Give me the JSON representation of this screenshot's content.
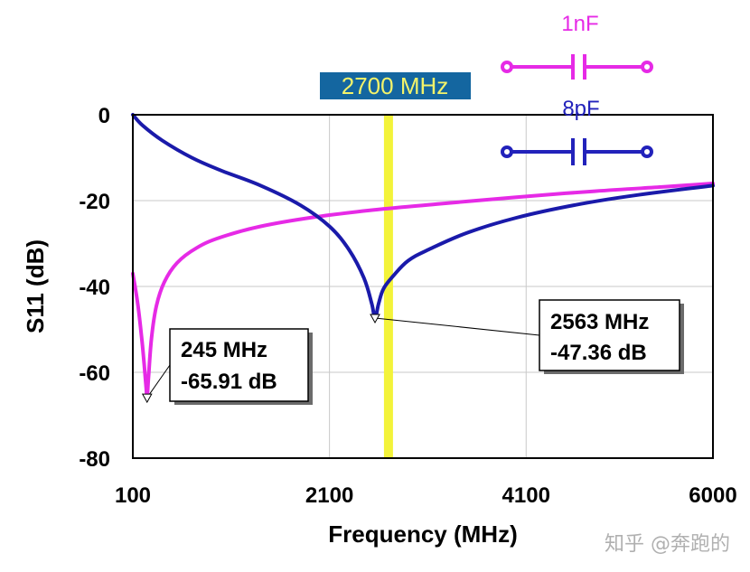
{
  "chart_data": {
    "type": "line",
    "title": "",
    "xlabel": "Frequency (MHz)",
    "ylabel": "S11 (dB)",
    "xlim": [
      100,
      6000
    ],
    "ylim": [
      -80,
      0
    ],
    "xticks": [
      100,
      2100,
      4100,
      6000
    ],
    "yticks": [
      0,
      -20,
      -40,
      -60,
      -80
    ],
    "grid": true,
    "series": [
      {
        "name": "1nF",
        "color": "#e62ae6",
        "x": [
          100,
          150,
          190,
          215,
          235,
          245,
          260,
          290,
          340,
          420,
          550,
          750,
          1000,
          1400,
          1900,
          2500,
          3200,
          4000,
          4800,
          5500,
          6000
        ],
        "y": [
          -37,
          -44,
          -52,
          -58,
          -63.5,
          -65.91,
          -61,
          -52,
          -44.5,
          -39,
          -34.5,
          -31,
          -28.5,
          -26,
          -24,
          -22.3,
          -20.8,
          -19.2,
          -17.8,
          -16.8,
          -16
        ]
      },
      {
        "name": "8pF",
        "color": "#1a1aaa",
        "x": [
          100,
          200,
          400,
          700,
          1000,
          1400,
          1800,
          2100,
          2300,
          2450,
          2530,
          2563,
          2600,
          2650,
          2750,
          2900,
          3100,
          3500,
          4000,
          4600,
          5200,
          6000
        ],
        "y": [
          0,
          -2.5,
          -6,
          -10,
          -13,
          -16.5,
          -21,
          -26,
          -31.5,
          -38,
          -44,
          -47.36,
          -44,
          -40.5,
          -37.5,
          -34,
          -31.5,
          -27.5,
          -24,
          -21,
          -18.8,
          -16.5
        ]
      }
    ],
    "markers": [
      {
        "series": "1nF",
        "x": 245,
        "y": -65.91,
        "freq_text": "245 MHz",
        "value_text": "-65.91 dB"
      },
      {
        "series": "8pF",
        "x": 2563,
        "y": -47.36,
        "freq_text": "2563 MHz",
        "value_text": "-47.36 dB"
      }
    ],
    "vline": {
      "x": 2700,
      "label": "2700 MHz",
      "color": "#f3f33a",
      "label_bg": "#1466a0"
    },
    "legend": [
      {
        "label": "1nF",
        "color": "#e62ae6"
      },
      {
        "label": "8pF",
        "color": "#2222bb"
      }
    ]
  },
  "watermark": "知乎 @奔跑的"
}
